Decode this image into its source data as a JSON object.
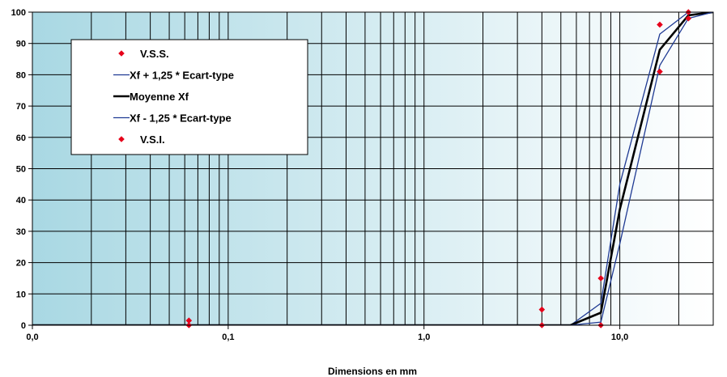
{
  "chart_data": {
    "type": "line",
    "title": "",
    "xlabel": "Dimensions en mm",
    "ylabel": "",
    "x_scale": "log",
    "xlim": [
      0.01,
      30
    ],
    "ylim": [
      0,
      100
    ],
    "x_tick_labels": [
      "0,0",
      "0,1",
      "1,0",
      "10,0"
    ],
    "x_tick_values": [
      0.01,
      0.1,
      1,
      10
    ],
    "y_ticks": [
      0,
      10,
      20,
      30,
      40,
      50,
      60,
      70,
      80,
      90,
      100
    ],
    "grid": true,
    "background": {
      "from": "#a9d8e3",
      "to": "#ffffff"
    },
    "legend_position": "upper-left",
    "series": [
      {
        "name": "V.S.S.",
        "kind": "markers",
        "color": "#e6001a",
        "marker": "diamond",
        "points": [
          [
            0.063,
            1.5
          ],
          [
            4,
            5
          ],
          [
            8,
            15
          ],
          [
            16,
            96
          ],
          [
            22.4,
            100
          ]
        ]
      },
      {
        "name": "Xf + 1,25 * Ecart-type",
        "kind": "line",
        "color": "#1f3a93",
        "width": 1.3,
        "points": [
          [
            0.01,
            0
          ],
          [
            5.6,
            0
          ],
          [
            8,
            7
          ],
          [
            10,
            45
          ],
          [
            16,
            93
          ],
          [
            22.4,
            100
          ],
          [
            30,
            100
          ]
        ]
      },
      {
        "name": "Moyenne Xf",
        "kind": "line",
        "color": "#000000",
        "width": 2.6,
        "points": [
          [
            0.01,
            0
          ],
          [
            5.6,
            0
          ],
          [
            8,
            4
          ],
          [
            10,
            37
          ],
          [
            16,
            88
          ],
          [
            22.4,
            99
          ],
          [
            30,
            100
          ]
        ]
      },
      {
        "name": "Xf - 1,25 * Ecart-type",
        "kind": "line",
        "color": "#1f3a93",
        "width": 1.3,
        "points": [
          [
            0.01,
            0
          ],
          [
            5.6,
            0
          ],
          [
            8,
            1
          ],
          [
            10,
            26
          ],
          [
            16,
            83
          ],
          [
            22.4,
            98
          ],
          [
            30,
            100
          ]
        ]
      },
      {
        "name": "V.S.I.",
        "kind": "markers",
        "color": "#e6001a",
        "marker": "diamond",
        "points": [
          [
            0.063,
            0
          ],
          [
            4,
            0
          ],
          [
            8,
            0
          ],
          [
            16,
            81
          ],
          [
            22.4,
            98
          ]
        ]
      }
    ]
  }
}
